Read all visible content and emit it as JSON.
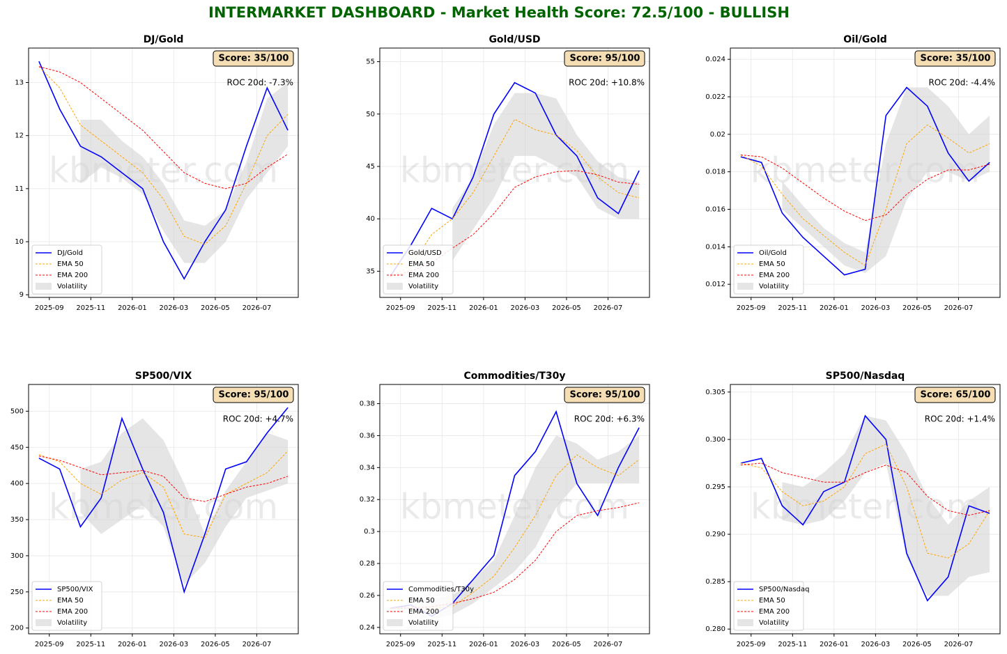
{
  "title": "INTERMARKET DASHBOARD - Market Health Score: 72.5/100 - BULLISH",
  "chart_data": [
    {
      "type": "line",
      "title": "DJ/Gold",
      "score": "Score: 35/100",
      "roc": "ROC 20d: -7.3%",
      "watermark": "kbmeter.com",
      "x": [
        "2025-08",
        "2025-09",
        "2025-10",
        "2025-11",
        "2025-12",
        "2026-01",
        "2026-02",
        "2026-03",
        "2026-04",
        "2026-05",
        "2026-06",
        "2026-07",
        "2026-08"
      ],
      "xlim": [
        "2025-08",
        "2026-09"
      ],
      "xticks": [
        "2025-09",
        "2025-11",
        "2026-01",
        "2026-03",
        "2026-05",
        "2026-07"
      ],
      "ylim": [
        8.95,
        13.65
      ],
      "yticks": [
        9,
        10,
        11,
        12,
        13
      ],
      "grid": true,
      "legend": "lower left",
      "series": [
        {
          "name": "DJ/Gold",
          "color": "#0000ff",
          "values": [
            13.4,
            12.5,
            11.8,
            11.6,
            11.3,
            11.0,
            10.0,
            9.3,
            10.0,
            10.6,
            11.8,
            12.9,
            12.1
          ]
        },
        {
          "name": "EMA 50",
          "color": "#ffa500",
          "dash": true,
          "values": [
            13.3,
            12.9,
            12.2,
            11.9,
            11.6,
            11.3,
            10.8,
            10.1,
            9.95,
            10.3,
            11.1,
            12.0,
            12.4
          ]
        },
        {
          "name": "EMA 200",
          "color": "#ff0000",
          "dash": true,
          "values": [
            13.3,
            13.2,
            13.0,
            12.7,
            12.4,
            12.1,
            11.7,
            11.3,
            11.1,
            11.0,
            11.1,
            11.4,
            11.65
          ]
        }
      ],
      "band": {
        "name": "Volatility",
        "color": "#d3d3d3",
        "upper": [
          null,
          null,
          12.3,
          12.3,
          11.9,
          11.6,
          11.1,
          10.4,
          10.3,
          10.6,
          11.5,
          12.7,
          13.0
        ],
        "lower": [
          null,
          null,
          11.1,
          11.4,
          11.2,
          10.9,
          10.2,
          9.6,
          9.6,
          10.0,
          10.8,
          11.3,
          11.8
        ]
      }
    },
    {
      "type": "line",
      "title": "Gold/USD",
      "score": "Score: 95/100",
      "roc": "ROC 20d: +10.8%",
      "watermark": "kbmeter.com",
      "x": [
        "2025-08",
        "2025-09",
        "2025-10",
        "2025-11",
        "2025-12",
        "2026-01",
        "2026-02",
        "2026-03",
        "2026-04",
        "2026-05",
        "2026-06",
        "2026-07",
        "2026-08"
      ],
      "xlim": [
        "2025-08",
        "2026-09"
      ],
      "xticks": [
        "2025-09",
        "2025-11",
        "2026-01",
        "2026-03",
        "2026-05",
        "2026-07"
      ],
      "ylim": [
        32.5,
        56.3
      ],
      "yticks": [
        35,
        40,
        45,
        50,
        55
      ],
      "grid": true,
      "legend": "lower left",
      "series": [
        {
          "name": "Gold/USD",
          "color": "#0000ff",
          "values": [
            34.5,
            37.5,
            41,
            40,
            44,
            50,
            53,
            52,
            48,
            46,
            42,
            40.5,
            44.6
          ]
        },
        {
          "name": "EMA 50",
          "color": "#ffa500",
          "dash": true,
          "values": [
            34.5,
            35.5,
            38.5,
            40,
            42.5,
            46,
            49.5,
            48.5,
            48,
            46.5,
            44,
            42.5,
            42.0
          ]
        },
        {
          "name": "EMA 200",
          "color": "#ff0000",
          "dash": true,
          "values": [
            34.5,
            35,
            35.8,
            37.2,
            38.5,
            40.5,
            43,
            44,
            44.5,
            44.6,
            44.2,
            43.5,
            43.3
          ]
        }
      ],
      "band": {
        "name": "Volatility",
        "color": "#d3d3d3",
        "upper": [
          null,
          null,
          null,
          41,
          44,
          49,
          52,
          52,
          51.5,
          48,
          45.5,
          44,
          43.5
        ],
        "lower": [
          null,
          null,
          null,
          36,
          39,
          42,
          46,
          46,
          45,
          44,
          41,
          40,
          40
        ]
      }
    },
    {
      "type": "line",
      "title": "Oil/Gold",
      "score": "Score: 35/100",
      "roc": "ROC 20d: -4.4%",
      "watermark": "kbmeter.com",
      "x": [
        "2025-08",
        "2025-09",
        "2025-10",
        "2025-11",
        "2025-12",
        "2026-01",
        "2026-02",
        "2026-03",
        "2026-04",
        "2026-05",
        "2026-06",
        "2026-07",
        "2026-08"
      ],
      "xlim": [
        "2025-08",
        "2026-09"
      ],
      "xticks": [
        "2025-09",
        "2025-11",
        "2026-01",
        "2026-03",
        "2026-05",
        "2026-07"
      ],
      "ylim": [
        0.0113,
        0.0246
      ],
      "yticks": [
        0.012,
        0.014,
        0.016,
        0.018,
        0.02,
        0.022,
        0.024
      ],
      "grid": true,
      "legend": "lower left",
      "series": [
        {
          "name": "Oil/Gold",
          "color": "#0000ff",
          "values": [
            0.0188,
            0.0185,
            0.0158,
            0.0145,
            0.0135,
            0.0125,
            0.0128,
            0.021,
            0.0225,
            0.0215,
            0.019,
            0.0175,
            0.0185
          ]
        },
        {
          "name": "EMA 50",
          "color": "#ffa500",
          "dash": true,
          "values": [
            0.0189,
            0.0183,
            0.0168,
            0.0155,
            0.0146,
            0.0137,
            0.013,
            0.016,
            0.0195,
            0.0205,
            0.0198,
            0.019,
            0.0195
          ]
        },
        {
          "name": "EMA 200",
          "color": "#ff0000",
          "dash": true,
          "values": [
            0.0189,
            0.0188,
            0.0182,
            0.0174,
            0.0166,
            0.0159,
            0.0154,
            0.0157,
            0.0168,
            0.0176,
            0.0181,
            0.0181,
            0.0184
          ]
        }
      ],
      "band": {
        "name": "Volatility",
        "color": "#d3d3d3",
        "upper": [
          null,
          null,
          0.0175,
          0.0162,
          0.015,
          0.0142,
          0.0137,
          0.0195,
          0.0225,
          0.0225,
          0.0215,
          0.02,
          0.021
        ],
        "lower": [
          null,
          null,
          0.016,
          0.015,
          0.014,
          0.013,
          0.0126,
          0.0135,
          0.0165,
          0.018,
          0.018,
          0.0175,
          0.018
        ]
      }
    },
    {
      "type": "line",
      "title": "SP500/VIX",
      "score": "Score: 95/100",
      "roc": "ROC 20d: +4.7%",
      "watermark": "kbmeter.com",
      "x": [
        "2025-08",
        "2025-09",
        "2025-10",
        "2025-11",
        "2025-12",
        "2026-01",
        "2026-02",
        "2026-03",
        "2026-04",
        "2026-05",
        "2026-06",
        "2026-07",
        "2026-08"
      ],
      "xlim": [
        "2025-08",
        "2026-09"
      ],
      "xticks": [
        "2025-09",
        "2025-11",
        "2026-01",
        "2026-03",
        "2026-05",
        "2026-07"
      ],
      "ylim": [
        192,
        537
      ],
      "yticks": [
        200,
        250,
        300,
        350,
        400,
        450,
        500
      ],
      "grid": true,
      "legend": "lower left",
      "series": [
        {
          "name": "SP500/VIX",
          "color": "#0000ff",
          "values": [
            435,
            420,
            340,
            380,
            490,
            420,
            360,
            250,
            330,
            420,
            430,
            470,
            505
          ]
        },
        {
          "name": "EMA 50",
          "color": "#ffa500",
          "dash": true,
          "values": [
            440,
            430,
            400,
            385,
            405,
            415,
            395,
            330,
            325,
            385,
            400,
            415,
            445
          ]
        },
        {
          "name": "EMA 200",
          "color": "#ff0000",
          "dash": true,
          "values": [
            438,
            432,
            422,
            412,
            415,
            418,
            410,
            380,
            375,
            385,
            395,
            400,
            410
          ]
        }
      ],
      "band": {
        "name": "Volatility",
        "color": "#d3d3d3",
        "upper": [
          null,
          null,
          420,
          430,
          470,
          490,
          460,
          400,
          330,
          390,
          430,
          470,
          460
        ],
        "lower": [
          null,
          null,
          360,
          330,
          350,
          370,
          340,
          260,
          290,
          340,
          380,
          390,
          400
        ]
      }
    },
    {
      "type": "line",
      "title": "Commodities/T30y",
      "score": "Score: 95/100",
      "roc": "ROC 20d: +6.3%",
      "watermark": "kbmeter.com",
      "x": [
        "2025-08",
        "2025-09",
        "2025-10",
        "2025-11",
        "2025-12",
        "2026-01",
        "2026-02",
        "2026-03",
        "2026-04",
        "2026-05",
        "2026-06",
        "2026-07",
        "2026-08"
      ],
      "xlim": [
        "2025-08",
        "2026-09"
      ],
      "xticks": [
        "2025-09",
        "2025-11",
        "2026-01",
        "2026-03",
        "2026-05",
        "2026-07"
      ],
      "ylim": [
        0.236,
        0.392
      ],
      "yticks": [
        0.24,
        0.26,
        0.28,
        0.3,
        0.32,
        0.34,
        0.36,
        0.38
      ],
      "grid": true,
      "legend": "lower left",
      "series": [
        {
          "name": "Commodities/T30y",
          "color": "#0000ff",
          "values": [
            0.252,
            0.254,
            0.247,
            0.255,
            0.27,
            0.285,
            0.335,
            0.35,
            0.375,
            0.33,
            0.31,
            0.34,
            0.365
          ]
        },
        {
          "name": "EMA 50",
          "color": "#ffa500",
          "dash": true,
          "values": [
            0.252,
            0.253,
            0.252,
            0.253,
            0.262,
            0.272,
            0.29,
            0.31,
            0.335,
            0.348,
            0.34,
            0.335,
            0.345
          ]
        },
        {
          "name": "EMA 200",
          "color": "#ff0000",
          "dash": true,
          "values": [
            0.252,
            0.252,
            0.253,
            0.255,
            0.258,
            0.262,
            0.27,
            0.282,
            0.3,
            0.31,
            0.313,
            0.315,
            0.318
          ]
        }
      ],
      "band": {
        "name": "Volatility",
        "color": "#d3d3d3",
        "upper": [
          null,
          null,
          0.258,
          0.26,
          0.27,
          0.282,
          0.31,
          0.34,
          0.36,
          0.355,
          0.345,
          0.35,
          0.36
        ],
        "lower": [
          null,
          null,
          0.245,
          0.248,
          0.255,
          0.265,
          0.275,
          0.29,
          0.315,
          0.33,
          0.33,
          0.33,
          0.33
        ]
      }
    },
    {
      "type": "line",
      "title": "SP500/Nasdaq",
      "score": "Score: 65/100",
      "roc": "ROC 20d: +1.4%",
      "watermark": "kbmeter.com",
      "x": [
        "2025-08",
        "2025-09",
        "2025-10",
        "2025-11",
        "2025-12",
        "2026-01",
        "2026-02",
        "2026-03",
        "2026-04",
        "2026-05",
        "2026-06",
        "2026-07",
        "2026-08"
      ],
      "xlim": [
        "2025-08",
        "2026-09"
      ],
      "xticks": [
        "2025-09",
        "2025-11",
        "2026-01",
        "2026-03",
        "2026-05",
        "2026-07"
      ],
      "ylim": [
        0.2795,
        0.3058
      ],
      "yticks": [
        {
          "value": 0.28,
          "label": "0.280"
        },
        0.285,
        {
          "value": 0.29,
          "label": "0.290"
        },
        0.295,
        {
          "value": 0.3,
          "label": "0.300"
        },
        0.305
      ],
      "grid": true,
      "legend": "lower left",
      "series": [
        {
          "name": "SP500/Nasdaq",
          "color": "#0000ff",
          "values": [
            0.2975,
            0.298,
            0.293,
            0.291,
            0.2945,
            0.2955,
            0.3025,
            0.3,
            0.288,
            0.283,
            0.2855,
            0.293,
            0.2922
          ]
        },
        {
          "name": "EMA 50",
          "color": "#ffa500",
          "dash": true,
          "values": [
            0.2975,
            0.297,
            0.2945,
            0.293,
            0.2935,
            0.295,
            0.2985,
            0.2995,
            0.295,
            0.288,
            0.2875,
            0.289,
            0.2925
          ]
        },
        {
          "name": "EMA 200",
          "color": "#ff0000",
          "dash": true,
          "values": [
            0.2973,
            0.2975,
            0.2965,
            0.296,
            0.2955,
            0.2955,
            0.2965,
            0.2973,
            0.2965,
            0.294,
            0.2925,
            0.292,
            0.2925
          ]
        }
      ],
      "band": {
        "name": "Volatility",
        "color": "#d3d3d3",
        "upper": [
          null,
          null,
          0.2955,
          0.295,
          0.2965,
          0.2985,
          0.3025,
          0.302,
          0.2985,
          0.294,
          0.291,
          0.2935,
          0.295
        ],
        "lower": [
          null,
          null,
          0.2915,
          0.291,
          0.2915,
          0.2935,
          0.2965,
          0.2975,
          0.2875,
          0.2835,
          0.2835,
          0.2855,
          0.286
        ]
      }
    }
  ]
}
